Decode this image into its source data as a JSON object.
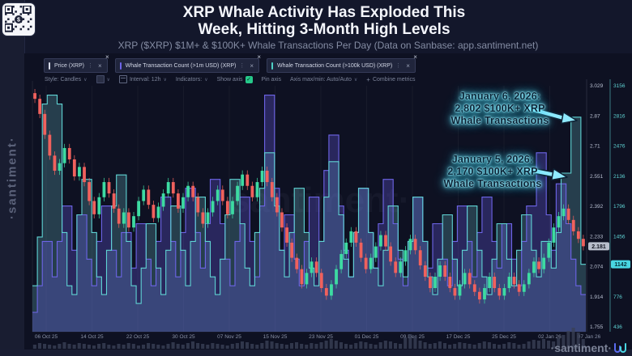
{
  "header": {
    "title_line1": "XRP Whale Activity Has Exploded This",
    "title_line2": "Week, Hitting 3-Month High Levels",
    "subtitle": "XRP ($XRP) $1M+ & $100K+ Whale Transactions Per Day (Data on Sanbase: app.santiment.net)"
  },
  "sidebar": {
    "brand": "·santiment·"
  },
  "watermark_center": "santiment·",
  "watermark_bottom": "·santiment·",
  "legend_chips": [
    {
      "label": "Price (XRP)",
      "color": "#d7dbe8"
    },
    {
      "label": "Whale Transaction Count (>1m USD) (XRP)",
      "color": "#6e65e8"
    },
    {
      "label": "Whale Transaction Count (>100k USD) (XRP)",
      "color": "#4fd1c5"
    }
  ],
  "toolbar": {
    "items": [
      {
        "type": "dropdown",
        "label": "Style: Candles"
      },
      {
        "type": "swatch",
        "label": ""
      },
      {
        "type": "dropdown",
        "label": "Interval: 12h",
        "icon": "calendar-icon"
      },
      {
        "type": "dropdown",
        "label": "Indicators:"
      },
      {
        "type": "toggle",
        "label": "Show axis",
        "checked": true
      },
      {
        "type": "label",
        "label": "Pin axis"
      },
      {
        "type": "dropdown",
        "label": "Axis max/min: Auto/Auto"
      },
      {
        "type": "action",
        "label": "Combine metrics",
        "icon": "plus-icon"
      }
    ],
    "toggle_color": "#26c98a"
  },
  "annotations": [
    {
      "lines": [
        "January 6, 2026:",
        "2,802 $100K+ XRP",
        "Whale Transactions"
      ]
    },
    {
      "lines": [
        "January 5, 2026:",
        "2,170 $100K+ XRP",
        "Whale Transactions"
      ]
    }
  ],
  "chart_data": {
    "type": "candlestick+step-area",
    "title": "XRP ($XRP) price with $1M+ and $100K+ whale transaction counts per day",
    "legend_position": "top-left chips",
    "grid": "vertical only",
    "x_labels": [
      "06 Oct 25",
      "14 Oct 25",
      "22 Oct 25",
      "30 Oct 25",
      "07 Nov 25",
      "15 Nov 25",
      "23 Nov 25",
      "01 Dec 25",
      "09 Dec 25",
      "17 Dec 25",
      "25 Dec 25",
      "02 Jan 26",
      "07 Jan 26"
    ],
    "price_axis": {
      "side": "right-inner",
      "ticks": [
        "3.029",
        "2.87",
        "2.71",
        "2.551",
        "2.392",
        "2.233",
        "2.074",
        "1.914",
        "1.755"
      ],
      "min": 1.755,
      "max": 3.029,
      "current_label": "2.181",
      "current_value": 2.181,
      "badge_bg": "#b9bfcc",
      "badge_text": "#10131f",
      "tick_color": "#b9c0d2"
    },
    "count_axis": {
      "side": "right-outer",
      "ticks": [
        "3156",
        "2816",
        "2476",
        "2136",
        "1796",
        "1456",
        "1116",
        "776",
        "436"
      ],
      "min": 436,
      "max": 3156,
      "current_label": "1142",
      "current_value": 1142,
      "badge_bg": "#49d6e2",
      "badge_text": "#06303a",
      "tick_color": "#5fd4d4"
    },
    "series": [
      {
        "name": "Price (XRP)",
        "type": "candlestick",
        "up_color": "#3ddba2",
        "down_color": "#f0615d",
        "wick": 0.022,
        "open_first": 2.99,
        "closes": [
          2.96,
          2.88,
          2.77,
          2.66,
          2.58,
          2.62,
          2.7,
          2.64,
          2.55,
          2.6,
          2.52,
          2.42,
          2.35,
          2.44,
          2.52,
          2.46,
          2.38,
          2.3,
          2.36,
          2.28,
          2.34,
          2.42,
          2.48,
          2.4,
          2.33,
          2.39,
          2.46,
          2.52,
          2.46,
          2.38,
          2.44,
          2.5,
          2.44,
          2.36,
          2.3,
          2.36,
          2.42,
          2.48,
          2.42,
          2.35,
          2.42,
          2.5,
          2.56,
          2.5,
          2.44,
          2.52,
          2.58,
          2.52,
          2.44,
          2.36,
          2.28,
          2.2,
          2.12,
          2.06,
          1.98,
          2.04,
          2.1,
          2.04,
          1.96,
          1.92,
          1.98,
          2.06,
          2.14,
          2.2,
          2.26,
          2.2,
          2.12,
          2.06,
          2.12,
          2.18,
          2.24,
          2.18,
          2.1,
          2.04,
          2.1,
          2.16,
          2.22,
          2.16,
          2.08,
          2.02,
          1.96,
          2.02,
          2.08,
          2.02,
          1.96,
          1.92,
          1.98,
          2.04,
          1.98,
          1.94,
          1.9,
          1.96,
          2.02,
          1.96,
          1.92,
          1.96,
          2.02,
          1.98,
          1.94,
          1.98,
          2.04,
          2.1,
          2.06,
          2.12,
          2.2,
          2.28,
          2.34,
          2.38,
          2.32,
          2.26,
          2.22,
          2.181
        ]
      },
      {
        "name": "Whale Transaction Count (>1m USD) (XRP)",
        "type": "step-area",
        "color": "#6e65e8",
        "fill": "rgba(99,88,218,0.32)",
        "values": [
          600,
          900,
          1400,
          1400,
          1000,
          1400,
          1800,
          1800,
          1300,
          1700,
          1700,
          1200,
          900,
          1400,
          1800,
          1800,
          1300,
          1000,
          1500,
          1500,
          1100,
          1600,
          1600,
          1200,
          900,
          1400,
          1900,
          1900,
          1400,
          1000,
          1500,
          2000,
          2000,
          1500,
          1100,
          1600,
          2100,
          2100,
          1600,
          1200,
          900,
          1400,
          1900,
          1900,
          1400,
          1000,
          1800,
          3050,
          3050,
          2000,
          1300,
          1700,
          1700,
          1200,
          900,
          1400,
          1900,
          1900,
          1400,
          2200,
          2600,
          2600,
          1800,
          1300,
          1000,
          1500,
          2000,
          2000,
          1500,
          1100,
          1600,
          2100,
          2100,
          1600,
          1200,
          900,
          1400,
          1900,
          1900,
          1400,
          1100,
          1600,
          1600,
          1200,
          900,
          1400,
          1800,
          1800,
          1400,
          1000,
          1500,
          1900,
          1900,
          1400,
          1100,
          1600,
          1600,
          1200,
          900,
          1400,
          1800,
          1800,
          2400,
          2400,
          1700,
          1300,
          2050,
          2050,
          1600,
          1200,
          900,
          800
        ]
      },
      {
        "name": "Whale Transaction Count (>100k USD) (XRP)",
        "type": "step-area",
        "color": "#5fd4d4",
        "fill": "rgba(96,170,180,0.30)",
        "highlights": [
          {
            "date": "January 5, 2026",
            "value": 2170
          },
          {
            "date": "January 6, 2026",
            "value": 2802
          }
        ],
        "values": [
          900,
          1450,
          2950,
          3050,
          3050,
          2950,
          1500,
          900,
          800,
          1700,
          2100,
          2100,
          1500,
          1000,
          800,
          1300,
          1800,
          2150,
          2150,
          1400,
          900,
          700,
          1100,
          1600,
          1600,
          1100,
          800,
          1300,
          1800,
          1800,
          1300,
          900,
          1400,
          1900,
          1900,
          1400,
          1000,
          800,
          1200,
          1700,
          2100,
          2100,
          1600,
          1100,
          900,
          1500,
          2000,
          2400,
          2400,
          1800,
          1300,
          1000,
          1500,
          2000,
          2000,
          1500,
          1100,
          900,
          1400,
          1900,
          2300,
          2300,
          1700,
          1200,
          1000,
          1500,
          2000,
          2000,
          1500,
          1100,
          900,
          1300,
          1800,
          1800,
          1300,
          1000,
          1400,
          1900,
          1900,
          1400,
          1000,
          800,
          1200,
          1700,
          1700,
          1200,
          900,
          1300,
          1800,
          1800,
          1300,
          1000,
          800,
          1200,
          1600,
          1600,
          1200,
          900,
          1300,
          1700,
          1700,
          1300,
          1000,
          1400,
          1400,
          1100,
          1500,
          2170,
          2170,
          2802,
          2802,
          1142
        ]
      }
    ],
    "volume": {
      "color": "#394056",
      "values": [
        5,
        7,
        6,
        5,
        4,
        6,
        8,
        6,
        5,
        7,
        6,
        5,
        4,
        6,
        7,
        5,
        4,
        6,
        5,
        7,
        6,
        4,
        5,
        7,
        6,
        5,
        4,
        6,
        8,
        6,
        5,
        7,
        9,
        7,
        6,
        5,
        7,
        6,
        5,
        4,
        6,
        7,
        9,
        8,
        6,
        5,
        7,
        10,
        9,
        7,
        6,
        5,
        7,
        8,
        6,
        5,
        7,
        6,
        8,
        10,
        12,
        10,
        8,
        6,
        5,
        7,
        9,
        8,
        6,
        5,
        8,
        10,
        9,
        7,
        6,
        14,
        18,
        16,
        10,
        8,
        6,
        7,
        9,
        7,
        5,
        6,
        8,
        7,
        6,
        5,
        7,
        9,
        8,
        6,
        5,
        6,
        8,
        7,
        5,
        6,
        9,
        11,
        10,
        12,
        10,
        9,
        13,
        17,
        22,
        26,
        20,
        12
      ]
    },
    "arrow_color": "#8feaff"
  }
}
